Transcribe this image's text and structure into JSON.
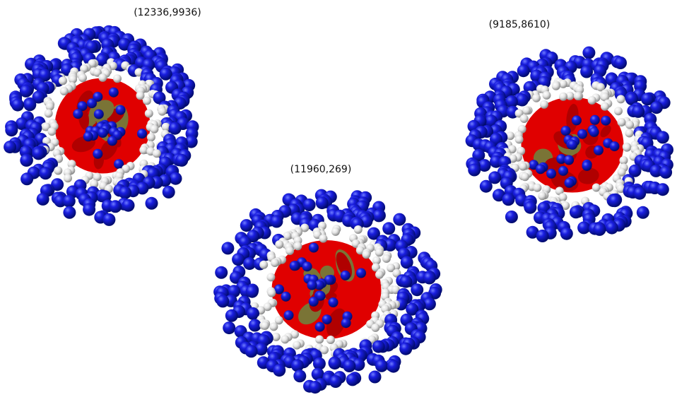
{
  "structures": [
    {
      "label": "(12336,9936)"
    },
    {
      "label": "(11960,269)"
    },
    {
      "label": "(9185,8610)"
    }
  ]
}
